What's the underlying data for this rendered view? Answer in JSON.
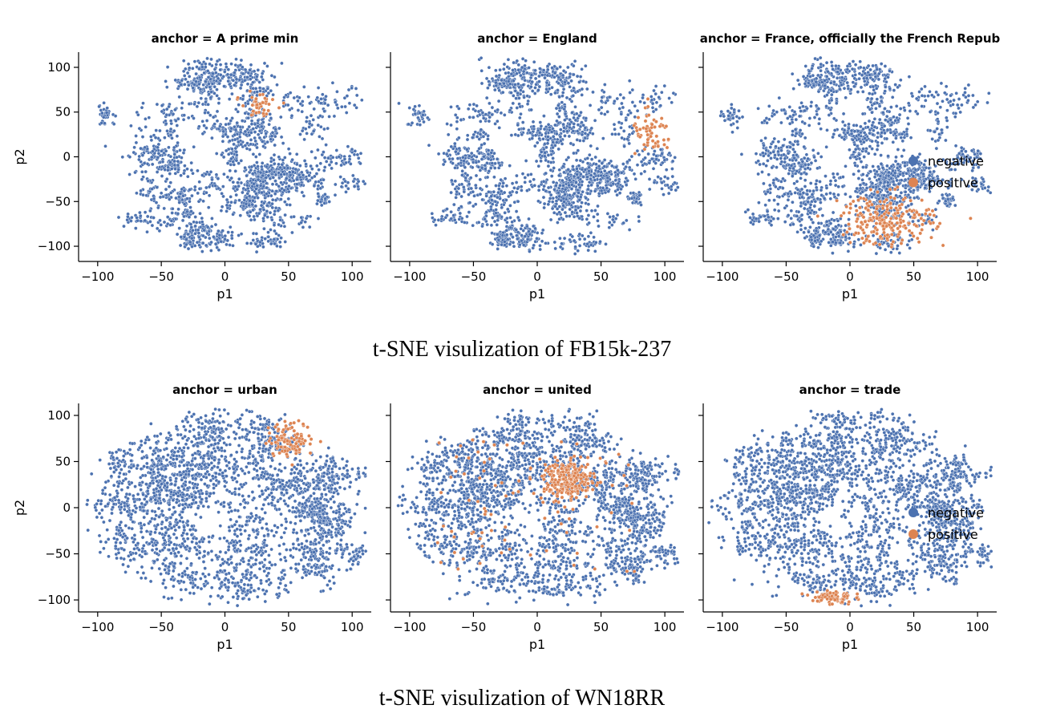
{
  "captions": {
    "top": "t-SNE visulization of FB15k-237",
    "bottom": "t-SNE visulization of WN18RR"
  },
  "colors": {
    "negative": "#4c72b0",
    "positive": "#dd8452"
  },
  "legend": {
    "negative": "negative",
    "positive": "positive",
    "placement": "right"
  },
  "chart_data": [
    {
      "type": "scatter",
      "dataset": "FB15k-237",
      "title": "anchor = A prime min",
      "xlabel": "p1",
      "ylabel": "p2",
      "xlim": [
        -115,
        115
      ],
      "ylim": [
        -117,
        117
      ],
      "xticks": [
        -100,
        -50,
        0,
        50,
        100
      ],
      "yticks": [
        100,
        50,
        0,
        -50,
        -100
      ],
      "xtick_labels": [
        "−100",
        "−50",
        "0",
        "50",
        "100"
      ],
      "ytick_labels": [
        "100",
        "50",
        "0",
        "−50",
        "−100"
      ],
      "grid": false,
      "show_legend": false,
      "series": [
        {
          "name": "negative",
          "approx_count": 2400,
          "point_cloud_extent": {
            "x": [
              -108,
              112
            ],
            "y": [
              -105,
              106
            ]
          }
        },
        {
          "name": "positive",
          "approx_count": 45,
          "cluster_center": [
            27,
            58
          ],
          "cluster_spread": [
            7,
            6
          ]
        }
      ]
    },
    {
      "type": "scatter",
      "dataset": "FB15k-237",
      "title": "anchor = England",
      "xlabel": "p1",
      "ylabel": "",
      "xlim": [
        -115,
        115
      ],
      "ylim": [
        -117,
        117
      ],
      "xticks": [
        -100,
        -50,
        0,
        50,
        100
      ],
      "yticks": [],
      "xtick_labels": [
        "−100",
        "−50",
        "0",
        "50",
        "100"
      ],
      "ytick_labels": [],
      "grid": false,
      "show_legend": false,
      "series": [
        {
          "name": "negative",
          "approx_count": 2400,
          "point_cloud_extent": {
            "x": [
              -108,
              112
            ],
            "y": [
              -105,
              106
            ]
          }
        },
        {
          "name": "positive",
          "approx_count": 60,
          "cluster_center": [
            90,
            25
          ],
          "cluster_spread": [
            8,
            12
          ]
        }
      ]
    },
    {
      "type": "scatter",
      "dataset": "FB15k-237",
      "title": "anchor = France, officially the French Repub",
      "xlabel": "p1",
      "ylabel": "",
      "xlim": [
        -115,
        115
      ],
      "ylim": [
        -117,
        117
      ],
      "xticks": [
        -100,
        -50,
        0,
        50,
        100
      ],
      "yticks": [],
      "xtick_labels": [
        "−100",
        "−50",
        "0",
        "50",
        "100"
      ],
      "ytick_labels": [],
      "grid": false,
      "show_legend": true,
      "series": [
        {
          "name": "negative",
          "approx_count": 2400,
          "point_cloud_extent": {
            "x": [
              -108,
              112
            ],
            "y": [
              -105,
              106
            ]
          }
        },
        {
          "name": "positive",
          "approx_count": 230,
          "cluster_center": [
            30,
            -70
          ],
          "cluster_spread": [
            18,
            14
          ]
        }
      ]
    },
    {
      "type": "scatter",
      "dataset": "WN18RR",
      "title": "anchor = urban",
      "xlabel": "p1",
      "ylabel": "p2",
      "xlim": [
        -115,
        115
      ],
      "ylim": [
        -113,
        113
      ],
      "xticks": [
        -100,
        -50,
        0,
        50,
        100
      ],
      "yticks": [
        100,
        50,
        0,
        -50,
        -100
      ],
      "xtick_labels": [
        "−100",
        "−50",
        "0",
        "50",
        "100"
      ],
      "ytick_labels": [
        "100",
        "50",
        "0",
        "−50",
        "−100"
      ],
      "grid": false,
      "show_legend": false,
      "series": [
        {
          "name": "negative",
          "approx_count": 2600,
          "point_cloud_extent": {
            "x": [
              -105,
              112
            ],
            "y": [
              -103,
              104
            ]
          }
        },
        {
          "name": "positive",
          "approx_count": 110,
          "cluster_center": [
            52,
            74
          ],
          "cluster_spread": [
            9,
            9
          ]
        }
      ]
    },
    {
      "type": "scatter",
      "dataset": "WN18RR",
      "title": "anchor = united",
      "xlabel": "p1",
      "ylabel": "",
      "xlim": [
        -115,
        115
      ],
      "ylim": [
        -113,
        113
      ],
      "xticks": [
        -100,
        -50,
        0,
        50,
        100
      ],
      "yticks": [],
      "xtick_labels": [
        "−100",
        "−50",
        "0",
        "50",
        "100"
      ],
      "ytick_labels": [],
      "grid": false,
      "show_legend": false,
      "series": [
        {
          "name": "negative",
          "approx_count": 2600,
          "point_cloud_extent": {
            "x": [
              -105,
              112
            ],
            "y": [
              -103,
              104
            ]
          }
        },
        {
          "name": "positive",
          "approx_count": 240,
          "cluster_center": [
            25,
            30
          ],
          "cluster_spread": [
            10,
            10
          ]
        }
      ]
    },
    {
      "type": "scatter",
      "dataset": "WN18RR",
      "title": "anchor = trade",
      "xlabel": "p1",
      "ylabel": "",
      "xlim": [
        -115,
        115
      ],
      "ylim": [
        -113,
        113
      ],
      "xticks": [
        -100,
        -50,
        0,
        50,
        100
      ],
      "yticks": [],
      "xtick_labels": [
        "−100",
        "−50",
        "0",
        "50",
        "100"
      ],
      "ytick_labels": [],
      "grid": false,
      "show_legend": true,
      "series": [
        {
          "name": "negative",
          "approx_count": 2600,
          "point_cloud_extent": {
            "x": [
              -105,
              112
            ],
            "y": [
              -103,
              104
            ]
          }
        },
        {
          "name": "positive",
          "approx_count": 75,
          "cluster_center": [
            -14,
            -97
          ],
          "cluster_spread": [
            8,
            4
          ]
        }
      ]
    }
  ]
}
